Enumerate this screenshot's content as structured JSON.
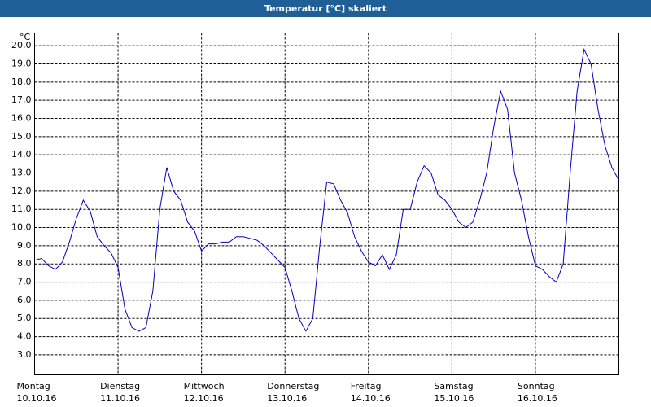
{
  "chart_data": {
    "type": "line",
    "title": "Temperatur [°C] skaliert",
    "y_unit": "°C",
    "series": [
      {
        "name": null,
        "color": "#0000c0",
        "values": [
          8.2,
          8.3,
          7.9,
          7.7,
          8.1,
          9.2,
          10.5,
          11.5,
          10.9,
          9.5,
          9.0,
          8.6,
          7.8,
          5.5,
          4.5,
          4.3,
          4.5,
          6.5,
          11.0,
          13.3,
          12.0,
          11.5,
          10.3,
          9.8,
          8.7,
          9.1,
          9.1,
          9.2,
          9.2,
          9.5,
          9.5,
          9.4,
          9.3,
          9.0,
          8.6,
          8.2,
          7.8,
          6.5,
          5.0,
          4.3,
          5.0,
          9.0,
          12.5,
          12.4,
          11.5,
          10.8,
          9.5,
          8.7,
          8.1,
          7.9,
          8.5,
          7.7,
          8.5,
          11.0,
          11.0,
          12.5,
          13.4,
          13.0,
          11.8,
          11.5,
          11.0,
          10.3,
          10.0,
          10.3,
          11.5,
          13.0,
          15.5,
          17.5,
          16.5,
          13.0,
          11.5,
          9.5,
          7.9,
          7.7,
          7.3,
          7.0,
          8.0,
          13.0,
          17.5,
          19.8,
          19.0,
          16.5,
          14.5,
          13.3,
          12.6
        ]
      }
    ],
    "x": [
      0,
      2,
      4,
      6,
      8,
      10,
      12,
      14,
      16,
      18,
      20,
      22,
      24,
      26,
      28,
      30,
      32,
      34,
      36,
      38,
      40,
      42,
      44,
      46,
      48,
      50,
      52,
      54,
      56,
      58,
      60,
      62,
      64,
      66,
      68,
      70,
      72,
      74,
      76,
      78,
      80,
      82,
      84,
      86,
      88,
      90,
      92,
      94,
      96,
      98,
      100,
      102,
      104,
      106,
      108,
      110,
      112,
      114,
      116,
      118,
      120,
      122,
      124,
      126,
      128,
      130,
      132,
      134,
      136,
      138,
      140,
      142,
      144,
      146,
      148,
      150,
      152,
      154,
      156,
      158,
      160,
      162,
      164,
      166,
      168
    ],
    "xlim": [
      0,
      168
    ],
    "xticks": [
      {
        "value": 0,
        "label": "Montag"
      },
      {
        "value": 24,
        "label": "Dienstag"
      },
      {
        "value": 48,
        "label": "Mittwoch"
      },
      {
        "value": 72,
        "label": "Donnerstag"
      },
      {
        "value": 96,
        "label": "Freitag"
      },
      {
        "value": 120,
        "label": "Samstag"
      },
      {
        "value": 144,
        "label": "Sonntag"
      }
    ],
    "xtick_dates": [
      "10.10.16",
      "11.10.16",
      "12.10.16",
      "13.10.16",
      "14.10.16",
      "15.10.16",
      "16.10.16"
    ],
    "ylim": [
      1.9,
      20.7
    ],
    "yticks": [
      {
        "value": 3,
        "label": "3,0"
      },
      {
        "value": 4,
        "label": "4,0"
      },
      {
        "value": 5,
        "label": "5,0"
      },
      {
        "value": 6,
        "label": "6,0"
      },
      {
        "value": 7,
        "label": "7,0"
      },
      {
        "value": 8,
        "label": "8,0"
      },
      {
        "value": 9,
        "label": "9,0"
      },
      {
        "value": 10,
        "label": "10,0"
      },
      {
        "value": 11,
        "label": "11,0"
      },
      {
        "value": 12,
        "label": "12,0"
      },
      {
        "value": 13,
        "label": "13,0"
      },
      {
        "value": 14,
        "label": "14,0"
      },
      {
        "value": 15,
        "label": "15,0"
      },
      {
        "value": 16,
        "label": "16,0"
      },
      {
        "value": 17,
        "label": "17,0"
      },
      {
        "value": 18,
        "label": "18,0"
      },
      {
        "value": 19,
        "label": "19,0"
      },
      {
        "value": 20,
        "label": "20,0"
      }
    ],
    "grid": true
  }
}
